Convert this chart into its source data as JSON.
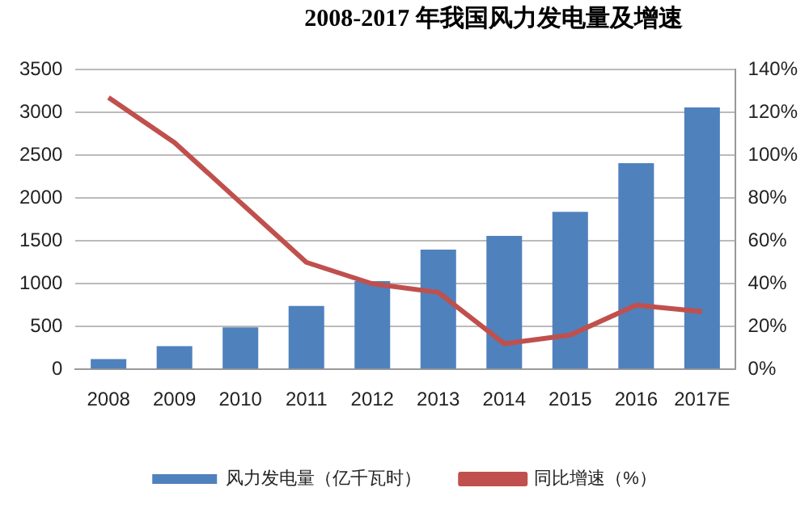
{
  "chart_data": {
    "type": "bar",
    "title": "2008-2017 年我国风力发电量及增速",
    "categories": [
      "2008",
      "2009",
      "2010",
      "2011",
      "2012",
      "2013",
      "2014",
      "2015",
      "2016",
      "2017E"
    ],
    "series": [
      {
        "name": "风力发电量（亿千瓦时）",
        "color": "#4f81bd",
        "values": [
          120,
          270,
          490,
          740,
          1030,
          1400,
          1560,
          1840,
          2410,
          3060
        ]
      },
      {
        "name": "同比增速（%）",
        "type": "line",
        "axis": "y2",
        "color": "#c0504d",
        "values": [
          127,
          106,
          78,
          50,
          40,
          36,
          12,
          16,
          30,
          27
        ]
      }
    ],
    "ylim": [
      0,
      3500
    ],
    "yticks": [
      0,
      500,
      1000,
      1500,
      2000,
      2500,
      3000,
      3500
    ],
    "y2lim": [
      0,
      140
    ],
    "y2ticks": [
      {
        "value": 0,
        "label": "0%"
      },
      {
        "value": 20,
        "label": "20%"
      },
      {
        "value": 40,
        "label": "40%"
      },
      {
        "value": 60,
        "label": "60%"
      },
      {
        "value": 80,
        "label": "80%"
      },
      {
        "value": 100,
        "label": "100%"
      },
      {
        "value": 120,
        "label": "120%"
      },
      {
        "value": 140,
        "label": "140%"
      }
    ],
    "grid": "y",
    "legend": "bottom",
    "marker": "none"
  }
}
